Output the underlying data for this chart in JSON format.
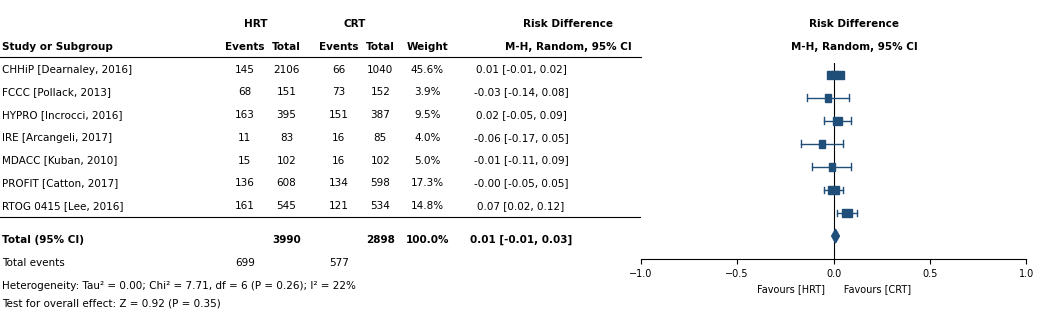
{
  "title_left": "Risk Difference",
  "title_right": "Risk Difference",
  "subtitle_left": "M-H, Random, 95% CI",
  "subtitle_right": "M-H, Random, 95% CI",
  "col_headers": [
    "",
    "HRT",
    "",
    "CRT",
    "",
    "",
    "Risk Difference"
  ],
  "col_subheaders": [
    "Study or Subgroup",
    "Events",
    "Total",
    "Events",
    "Total",
    "Weight",
    "M-H, Random, 95% CI"
  ],
  "studies": [
    {
      "name": "CHHiP [Dearnaley, 2016]",
      "hrt_events": 145,
      "hrt_total": 2106,
      "crt_events": 66,
      "crt_total": 1040,
      "weight": "45.6%",
      "ci_text": "0.01 [-0.01, 0.02]",
      "estimate": 0.01,
      "ci_low": -0.01,
      "ci_high": 0.02,
      "marker_size": 14
    },
    {
      "name": "FCCC [Pollack, 2013]",
      "hrt_events": 68,
      "hrt_total": 151,
      "crt_events": 73,
      "crt_total": 152,
      "weight": "3.9%",
      "ci_text": "-0.03 [-0.14, 0.08]",
      "estimate": -0.03,
      "ci_low": -0.14,
      "ci_high": 0.08,
      "marker_size": 5
    },
    {
      "name": "HYPRO [Incrocci, 2016]",
      "hrt_events": 163,
      "hrt_total": 395,
      "crt_events": 151,
      "crt_total": 387,
      "weight": "9.5%",
      "ci_text": "0.02 [-0.05, 0.09]",
      "estimate": 0.02,
      "ci_low": -0.05,
      "ci_high": 0.09,
      "marker_size": 7
    },
    {
      "name": "IRE [Arcangeli, 2017]",
      "hrt_events": 11,
      "hrt_total": 83,
      "crt_events": 16,
      "crt_total": 85,
      "weight": "4.0%",
      "ci_text": "-0.06 [-0.17, 0.05]",
      "estimate": -0.06,
      "ci_low": -0.17,
      "ci_high": 0.05,
      "marker_size": 5
    },
    {
      "name": "MDACC [Kuban, 2010]",
      "hrt_events": 15,
      "hrt_total": 102,
      "crt_events": 16,
      "crt_total": 102,
      "weight": "5.0%",
      "ci_text": "-0.01 [-0.11, 0.09]",
      "estimate": -0.01,
      "ci_low": -0.11,
      "ci_high": 0.09,
      "marker_size": 5
    },
    {
      "name": "PROFIT [Catton, 2017]",
      "hrt_events": 136,
      "hrt_total": 608,
      "crt_events": 134,
      "crt_total": 598,
      "weight": "17.3%",
      "ci_text": "-0.00 [-0.05, 0.05]",
      "estimate": -0.0,
      "ci_low": -0.05,
      "ci_high": 0.05,
      "marker_size": 9
    },
    {
      "name": "RTOG 0415 [Lee, 2016]",
      "hrt_events": 161,
      "hrt_total": 545,
      "crt_events": 121,
      "crt_total": 534,
      "weight": "14.8%",
      "ci_text": "0.07 [0.02, 0.12]",
      "estimate": 0.07,
      "ci_low": 0.02,
      "ci_high": 0.12,
      "marker_size": 8
    }
  ],
  "total": {
    "name": "Total (95% CI)",
    "hrt_total": 3990,
    "crt_total": 2898,
    "weight": "100.0%",
    "ci_text": "0.01 [-0.01, 0.03]",
    "estimate": 0.01,
    "ci_low": -0.01,
    "ci_high": 0.03
  },
  "total_events_hrt": 699,
  "total_events_crt": 577,
  "heterogeneity_text": "Heterogeneity: Tau² = 0.00; Chi² = 7.71, df = 6 (P = 0.26); I² = 22%",
  "overall_effect_text": "Test for overall effect: Z = 0.92 (P = 0.35)",
  "x_axis_ticks": [
    -1,
    -0.5,
    0,
    0.5,
    1
  ],
  "x_axis_label_left": "Favours [HRT]",
  "x_axis_label_right": "Favours [CRT]",
  "plot_color": "#1F4E79",
  "diamond_color": "#1F4E79",
  "line_color": "black",
  "x_min": -1,
  "x_max": 1
}
